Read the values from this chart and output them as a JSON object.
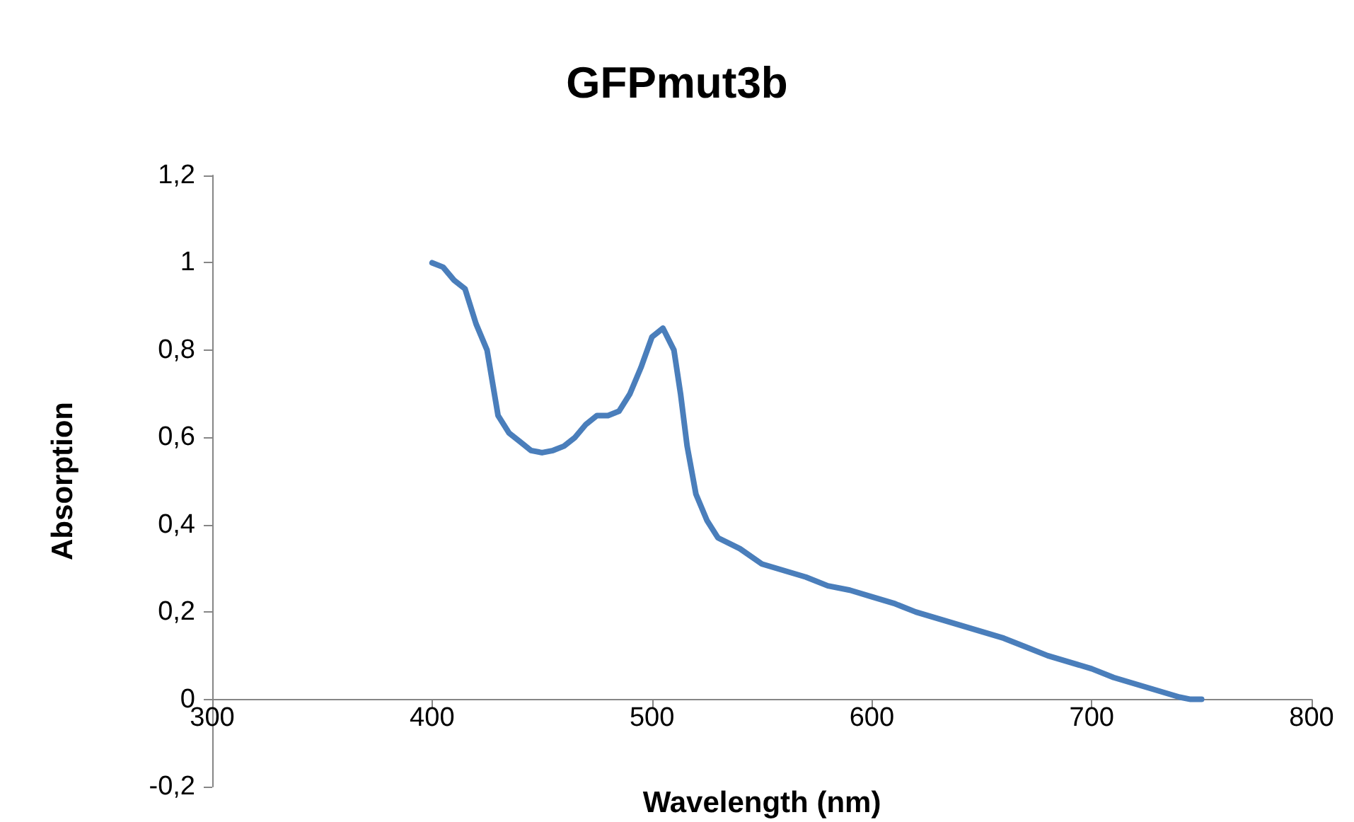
{
  "chart_data": {
    "type": "line",
    "title": "GFPmut3b",
    "xlabel": "Wavelength (nm)",
    "ylabel": "Absorption",
    "x": [
      400,
      405,
      410,
      415,
      420,
      425,
      430,
      435,
      440,
      445,
      450,
      455,
      460,
      465,
      470,
      475,
      480,
      485,
      490,
      495,
      500,
      505,
      510,
      513,
      516,
      520,
      525,
      530,
      540,
      550,
      560,
      570,
      580,
      590,
      600,
      610,
      620,
      630,
      640,
      650,
      660,
      670,
      680,
      690,
      700,
      710,
      720,
      730,
      740,
      745,
      750
    ],
    "series": [
      {
        "color": "#4a7ebb",
        "values": [
          1.0,
          0.99,
          0.96,
          0.94,
          0.86,
          0.8,
          0.65,
          0.61,
          0.59,
          0.57,
          0.565,
          0.57,
          0.58,
          0.6,
          0.63,
          0.65,
          0.65,
          0.66,
          0.7,
          0.76,
          0.83,
          0.85,
          0.8,
          0.7,
          0.58,
          0.47,
          0.41,
          0.37,
          0.345,
          0.31,
          0.295,
          0.28,
          0.26,
          0.25,
          0.235,
          0.22,
          0.2,
          0.185,
          0.17,
          0.155,
          0.14,
          0.12,
          0.1,
          0.085,
          0.07,
          0.05,
          0.035,
          0.02,
          0.005,
          0,
          0
        ]
      }
    ],
    "xlim": [
      300,
      800
    ],
    "xticks": [
      300,
      400,
      500,
      600,
      700,
      800
    ],
    "ylim": [
      -0.2,
      1.2
    ],
    "yticks": [
      {
        "value": -0.2,
        "label": "-0,2"
      },
      0,
      {
        "value": 0.2,
        "label": "0,2"
      },
      {
        "value": 0.4,
        "label": "0,4"
      },
      {
        "value": 0.6,
        "label": "0,6"
      },
      {
        "value": 0.8,
        "label": "0,8"
      },
      1,
      {
        "value": 1.2,
        "label": "1,2"
      }
    ],
    "marker": "none",
    "line_style": "solid"
  }
}
